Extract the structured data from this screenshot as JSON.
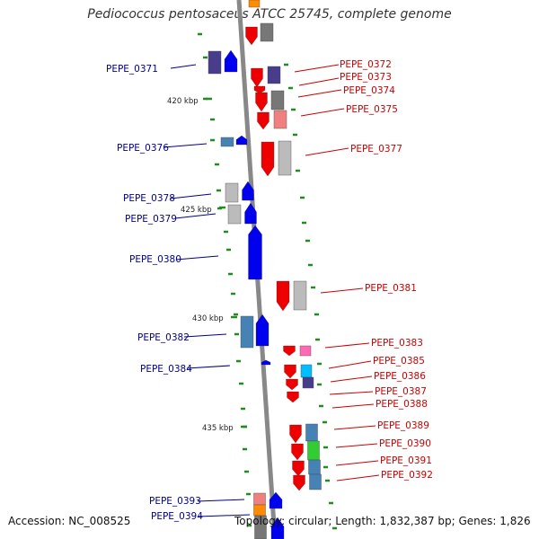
{
  "title": "Pediococcus pentosaceus ATCC 25745, complete genome",
  "footer": {
    "accession": "Accession: NC_008525",
    "topology": "Topology: circular; Length: 1,832,387 bp; Genes: 1,826"
  },
  "colors": {
    "forward": "#0000ee",
    "reverse": "#ee0000",
    "label_left": "#00008b",
    "label_right": "#cc0000",
    "backbone": "#888888",
    "tick": "#228b22"
  },
  "kbp_marks": [
    "420 kbp",
    "425 kbp",
    "430 kbp",
    "435 kbp"
  ],
  "left_labels": [
    "PEPE_0371",
    "PEPE_0376",
    "PEPE_0378",
    "PEPE_0379",
    "PEPE_0380",
    "PEPE_0382",
    "PEPE_0384",
    "PEPE_0393",
    "PEPE_0394"
  ],
  "right_labels": [
    "PEPE_0372",
    "PEPE_0373",
    "PEPE_0374",
    "PEPE_0375",
    "PEPE_0377",
    "PEPE_0381",
    "PEPE_0383",
    "PEPE_0385",
    "PEPE_0386",
    "PEPE_0387",
    "PEPE_0388",
    "PEPE_0389",
    "PEPE_0390",
    "PEPE_0391",
    "PEPE_0392"
  ]
}
